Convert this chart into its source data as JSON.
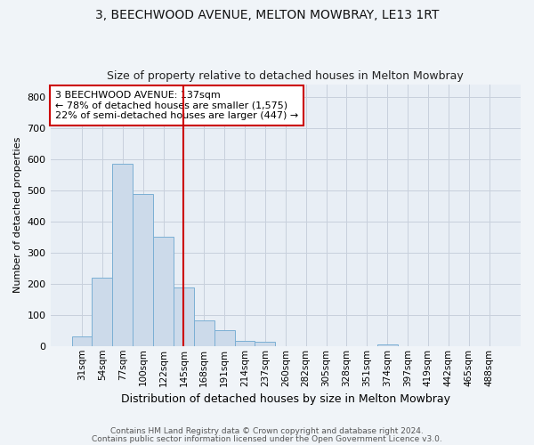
{
  "title1": "3, BEECHWOOD AVENUE, MELTON MOWBRAY, LE13 1RT",
  "title2": "Size of property relative to detached houses in Melton Mowbray",
  "xlabel": "Distribution of detached houses by size in Melton Mowbray",
  "ylabel": "Number of detached properties",
  "categories": [
    "31sqm",
    "54sqm",
    "77sqm",
    "100sqm",
    "122sqm",
    "145sqm",
    "168sqm",
    "191sqm",
    "214sqm",
    "237sqm",
    "260sqm",
    "282sqm",
    "305sqm",
    "328sqm",
    "351sqm",
    "374sqm",
    "397sqm",
    "419sqm",
    "442sqm",
    "465sqm",
    "488sqm"
  ],
  "values": [
    30,
    218,
    585,
    488,
    350,
    188,
    83,
    50,
    17,
    13,
    0,
    0,
    0,
    0,
    0,
    5,
    0,
    0,
    0,
    0,
    0
  ],
  "bar_color": "#ccdaea",
  "bar_edge_color": "#7bafd4",
  "annotation_text_line1": "3 BEECHWOOD AVENUE: 137sqm",
  "annotation_text_line2": "← 78% of detached houses are smaller (1,575)",
  "annotation_text_line3": "22% of semi-detached houses are larger (447) →",
  "annotation_box_color": "#ffffff",
  "annotation_box_edge": "#cc0000",
  "vline_color": "#cc0000",
  "footer1": "Contains HM Land Registry data © Crown copyright and database right 2024.",
  "footer2": "Contains public sector information licensed under the Open Government Licence v3.0.",
  "ylim": [
    0,
    840
  ],
  "yticks": [
    0,
    100,
    200,
    300,
    400,
    500,
    600,
    700,
    800
  ],
  "grid_color": "#c8d0dc",
  "bg_color": "#e8eef5",
  "fig_bg_color": "#f0f4f8",
  "vline_x_idx": 5
}
